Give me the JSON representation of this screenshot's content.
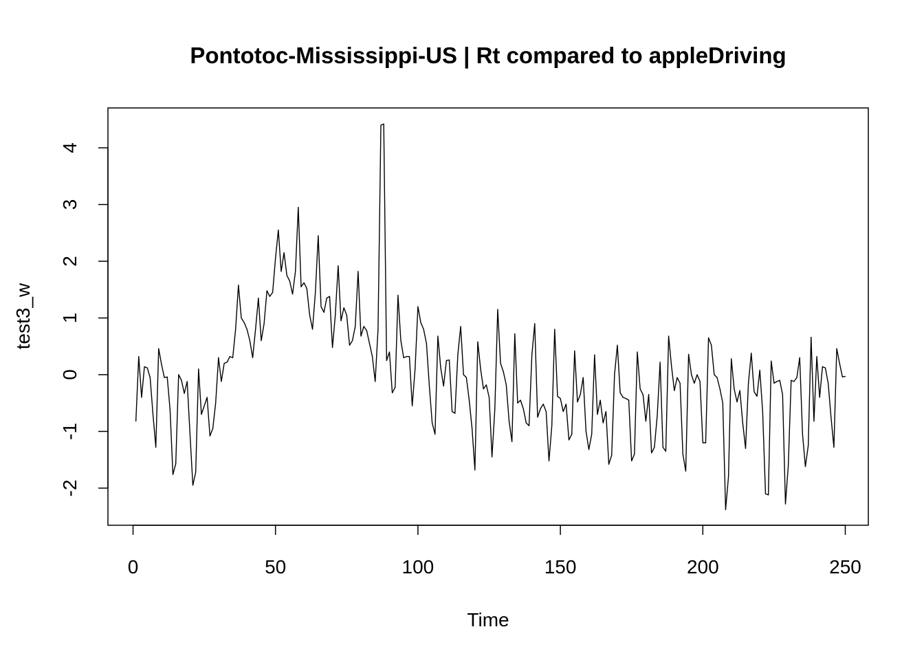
{
  "chart_data": {
    "type": "line",
    "title": "Pontotoc-Mississippi-US | Rt compared to appleDriving",
    "xlabel": "Time",
    "ylabel": "test3_w",
    "xlim": [
      0,
      250
    ],
    "ylim": [
      -2.5,
      4.5
    ],
    "xticks": [
      0,
      50,
      100,
      150,
      200,
      250
    ],
    "yticks": [
      -2,
      -1,
      0,
      1,
      2,
      3,
      4
    ],
    "xtick_labels": [
      "0",
      "50",
      "100",
      "150",
      "200",
      "250"
    ],
    "ytick_labels": [
      "-2",
      "-1",
      "0",
      "1",
      "2",
      "3",
      "4"
    ],
    "grid": false,
    "series": [
      {
        "name": "test3_w",
        "x_start": 1,
        "values": [
          -0.82,
          0.32,
          -0.4,
          0.14,
          0.12,
          -0.05,
          -0.7,
          -1.28,
          0.46,
          0.18,
          -0.05,
          -0.04,
          -0.62,
          -1.76,
          -1.57,
          0.0,
          -0.1,
          -0.33,
          -0.12,
          -1.05,
          -1.95,
          -1.72,
          0.1,
          -0.7,
          -0.55,
          -0.4,
          -1.08,
          -0.95,
          -0.5,
          0.3,
          -0.12,
          0.2,
          0.22,
          0.32,
          0.3,
          0.8,
          1.58,
          1.0,
          0.92,
          0.8,
          0.6,
          0.3,
          0.8,
          1.35,
          0.6,
          0.9,
          1.48,
          1.38,
          1.45,
          2.05,
          2.55,
          1.82,
          2.15,
          1.75,
          1.65,
          1.42,
          1.82,
          2.95,
          1.55,
          1.62,
          1.52,
          1.05,
          0.8,
          1.45,
          2.45,
          1.2,
          1.1,
          1.35,
          1.38,
          0.48,
          1.05,
          1.92,
          0.95,
          1.18,
          1.05,
          0.52,
          0.6,
          0.85,
          1.82,
          0.68,
          0.85,
          0.78,
          0.55,
          0.32,
          -0.12,
          0.8,
          4.4,
          4.42,
          0.25,
          0.4,
          -0.32,
          -0.22,
          1.4,
          0.6,
          0.3,
          0.32,
          0.32,
          -0.55,
          0.1,
          1.2,
          0.92,
          0.8,
          0.55,
          -0.2,
          -0.85,
          -1.05,
          0.68,
          0.12,
          -0.2,
          0.25,
          0.26,
          -0.65,
          -0.68,
          0.35,
          0.85,
          0.0,
          -0.05,
          -0.45,
          -0.95,
          -1.68,
          0.58,
          0.1,
          -0.25,
          -0.18,
          -0.4,
          -1.45,
          -0.6,
          1.15,
          0.2,
          0.05,
          -0.18,
          -0.82,
          -1.18,
          0.72,
          -0.5,
          -0.45,
          -0.6,
          -0.85,
          -0.9,
          0.35,
          0.9,
          -0.75,
          -0.6,
          -0.52,
          -0.65,
          -1.52,
          -0.9,
          0.8,
          -0.38,
          -0.42,
          -0.65,
          -0.52,
          -1.15,
          -1.05,
          0.42,
          -0.48,
          -0.35,
          -0.05,
          -1.0,
          -1.32,
          -1.05,
          0.35,
          -0.7,
          -0.45,
          -0.85,
          -0.65,
          -1.58,
          -1.42,
          0.0,
          0.52,
          -0.32,
          -0.4,
          -0.42,
          -0.45,
          -1.52,
          -1.4,
          0.4,
          -0.25,
          -0.35,
          -0.82,
          -0.35,
          -1.38,
          -1.28,
          -0.72,
          0.22,
          -1.28,
          -1.35,
          0.68,
          0.15,
          -0.28,
          -0.05,
          -0.15,
          -1.4,
          -1.7,
          0.36,
          0.0,
          -0.15,
          0.0,
          -0.12,
          -1.2,
          -1.2,
          0.65,
          0.52,
          0.0,
          -0.05,
          -0.25,
          -0.5,
          -2.38,
          -1.8,
          0.28,
          -0.25,
          -0.48,
          -0.28,
          -0.85,
          -1.3,
          -0.15,
          0.38,
          -0.3,
          -0.38,
          0.08,
          -0.65,
          -2.1,
          -2.12,
          0.24,
          -0.15,
          -0.12,
          -0.1,
          -0.35,
          -2.28,
          -1.6,
          -0.1,
          -0.12,
          -0.05,
          0.3,
          -1.05,
          -1.62,
          -1.25,
          0.66,
          -0.82,
          0.32,
          -0.4,
          0.14,
          0.12,
          -0.15,
          -0.75,
          -1.28,
          0.46,
          0.2,
          -0.04,
          -0.03
        ]
      }
    ]
  }
}
